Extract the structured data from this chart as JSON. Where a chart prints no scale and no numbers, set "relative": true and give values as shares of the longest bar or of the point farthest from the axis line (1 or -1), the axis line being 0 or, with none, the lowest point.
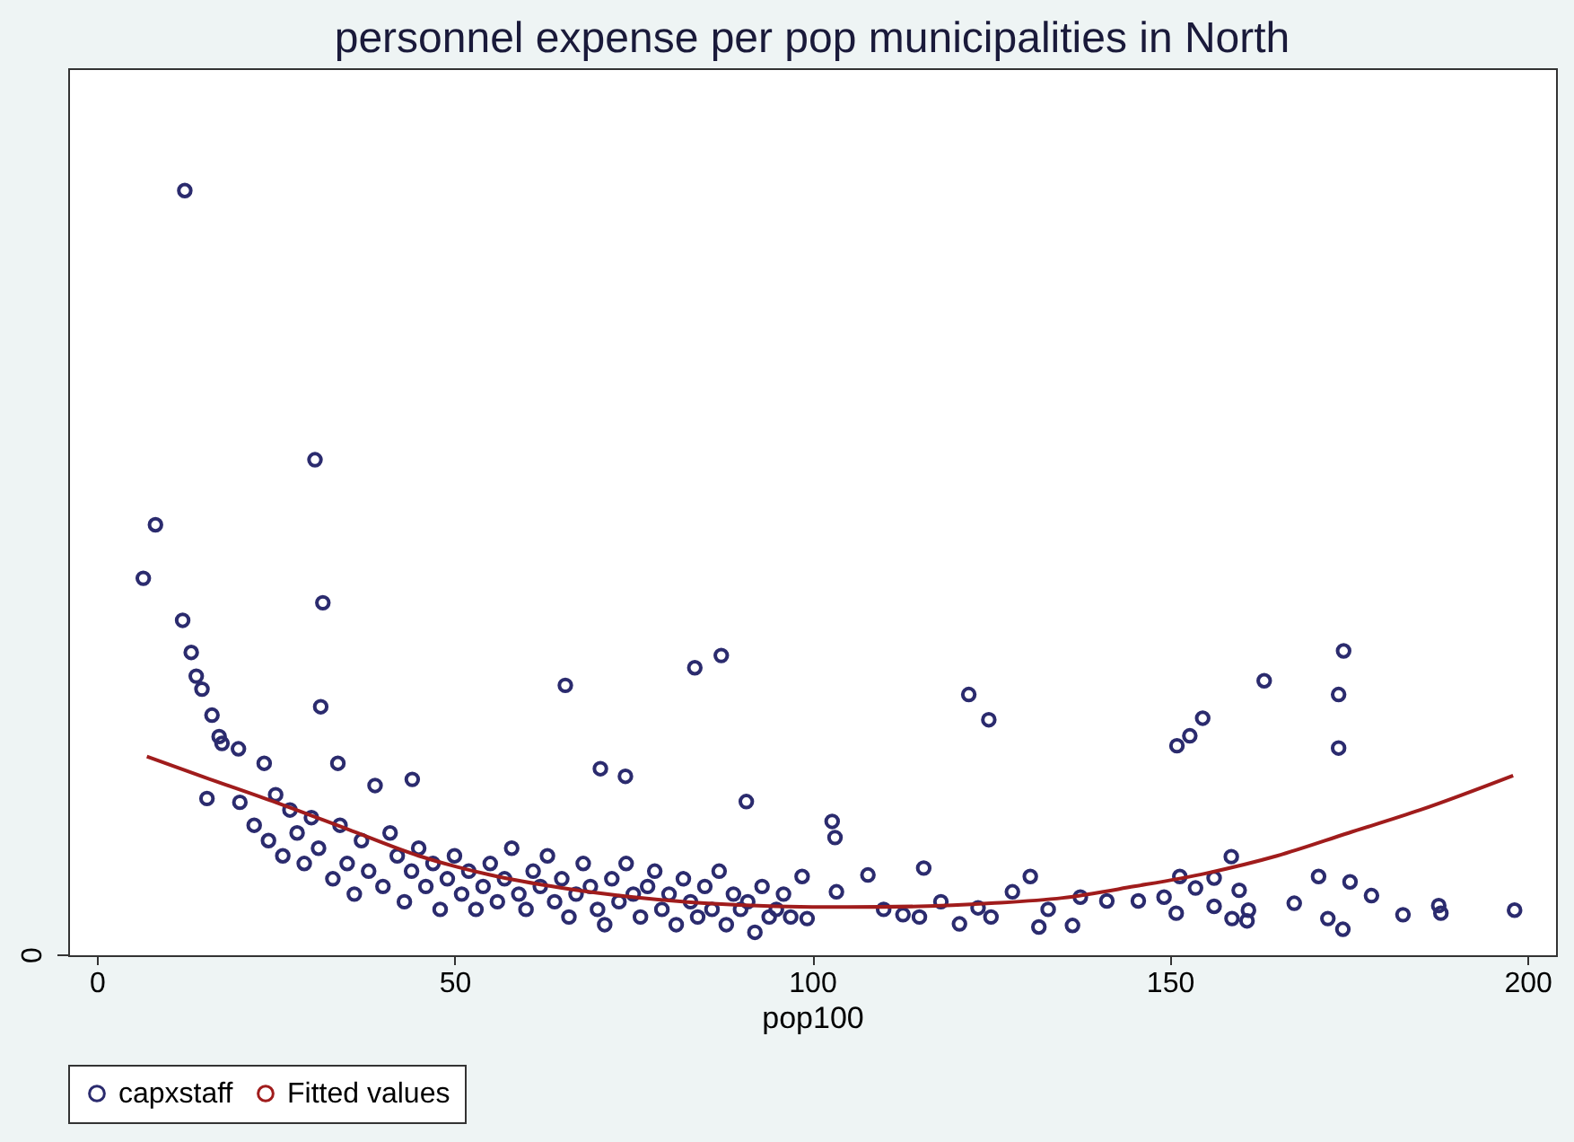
{
  "chart_data": {
    "type": "scatter",
    "title": "personnel expense per pop municipalities in North",
    "xlabel": "pop100",
    "relative": true,
    "annotations": [
      "0"
    ],
    "xlim": [
      -4,
      204
    ],
    "xticks": [
      0,
      50,
      100,
      150,
      200
    ],
    "grid": false,
    "legend": "bottom",
    "series": [
      {
        "name": "capxstaff",
        "color": "#2b2b6e",
        "marker": "circle",
        "x": [
          12.3,
          8.2,
          6.5,
          12.0,
          13.2,
          13.9,
          14.7,
          16.1,
          17.1,
          17.5,
          19.8,
          30.5,
          31.6,
          31.3,
          65.5,
          83.6,
          87.3,
          70.4,
          73.9,
          90.8,
          33.7,
          38.9,
          44.1,
          23.4,
          15.4,
          121.9,
          124.7,
          151,
          152.8,
          154.6,
          163.2,
          174.3,
          173.6,
          173.6,
          102.8,
          103.2,
          115.6,
          158.6,
          170.8,
          175.2,
          178.2,
          167.4,
          172.1,
          174.2,
          182.6,
          187.6,
          187.9,
          198.2,
          151.4,
          153.6,
          156.2,
          156.2,
          150.9,
          159.7,
          158.7,
          160.8,
          161,
          149.2,
          145.6,
          141.2,
          137.5,
          136.4,
          131.7,
          130.5,
          128,
          120.6,
          123.2,
          107.8,
          103.4,
          98.6,
          99.3,
          112.7,
          20,
          22,
          24,
          25,
          26,
          27,
          28,
          29,
          30,
          31,
          33,
          34,
          35,
          36,
          37,
          38,
          40,
          41,
          42,
          43,
          44,
          45,
          46,
          47,
          48,
          49,
          50,
          51,
          52,
          53,
          54,
          55,
          56,
          57,
          58,
          59,
          60,
          61,
          62,
          63,
          64,
          65,
          66,
          67,
          68,
          69,
          70,
          71,
          72,
          73,
          74,
          75,
          76,
          77,
          78,
          79,
          80,
          81,
          82,
          83,
          84,
          85,
          86,
          87,
          88,
          89,
          90,
          91,
          92,
          93,
          94,
          95,
          96,
          97,
          110,
          115,
          118,
          125,
          133
        ],
        "values": [
          1.0,
          0.563,
          0.493,
          0.438,
          0.396,
          0.365,
          0.348,
          0.314,
          0.286,
          0.277,
          0.27,
          0.648,
          0.461,
          0.325,
          0.353,
          0.376,
          0.392,
          0.244,
          0.234,
          0.201,
          0.251,
          0.222,
          0.23,
          0.251,
          0.205,
          0.341,
          0.308,
          0.274,
          0.287,
          0.31,
          0.359,
          0.398,
          0.341,
          0.271,
          0.175,
          0.154,
          0.114,
          0.129,
          0.103,
          0.096,
          0.078,
          0.068,
          0.048,
          0.034,
          0.053,
          0.065,
          0.055,
          0.059,
          0.103,
          0.088,
          0.101,
          0.064,
          0.055,
          0.085,
          0.048,
          0.045,
          0.059,
          0.076,
          0.071,
          0.071,
          0.076,
          0.039,
          0.037,
          0.103,
          0.083,
          0.041,
          0.062,
          0.105,
          0.083,
          0.103,
          0.048,
          0.053,
          0.2,
          0.17,
          0.15,
          0.21,
          0.13,
          0.19,
          0.16,
          0.12,
          0.18,
          0.14,
          0.1,
          0.17,
          0.12,
          0.08,
          0.15,
          0.11,
          0.09,
          0.16,
          0.13,
          0.07,
          0.11,
          0.14,
          0.09,
          0.12,
          0.06,
          0.1,
          0.13,
          0.08,
          0.11,
          0.06,
          0.09,
          0.12,
          0.07,
          0.1,
          0.14,
          0.08,
          0.06,
          0.11,
          0.09,
          0.13,
          0.07,
          0.1,
          0.05,
          0.08,
          0.12,
          0.09,
          0.06,
          0.04,
          0.1,
          0.07,
          0.12,
          0.08,
          0.05,
          0.09,
          0.11,
          0.06,
          0.08,
          0.04,
          0.1,
          0.07,
          0.05,
          0.09,
          0.06,
          0.11,
          0.04,
          0.08,
          0.06,
          0.07,
          0.03,
          0.09,
          0.05,
          0.06,
          0.08,
          0.05,
          0.06,
          0.05,
          0.07,
          0.05,
          0.06
        ]
      },
      {
        "name": "Fitted values",
        "type": "line",
        "color": "#a01c1c",
        "marker": "none",
        "line_style": "solid",
        "x": [
          7,
          15,
          25,
          35,
          45,
          55,
          65,
          75,
          85,
          95,
          105,
          115,
          125,
          135,
          145,
          155,
          165,
          175,
          185,
          198
        ],
        "values": [
          0.26,
          0.233,
          0.2,
          0.165,
          0.13,
          0.105,
          0.088,
          0.076,
          0.068,
          0.064,
          0.063,
          0.064,
          0.068,
          0.075,
          0.09,
          0.107,
          0.13,
          0.16,
          0.19,
          0.235
        ]
      }
    ]
  }
}
